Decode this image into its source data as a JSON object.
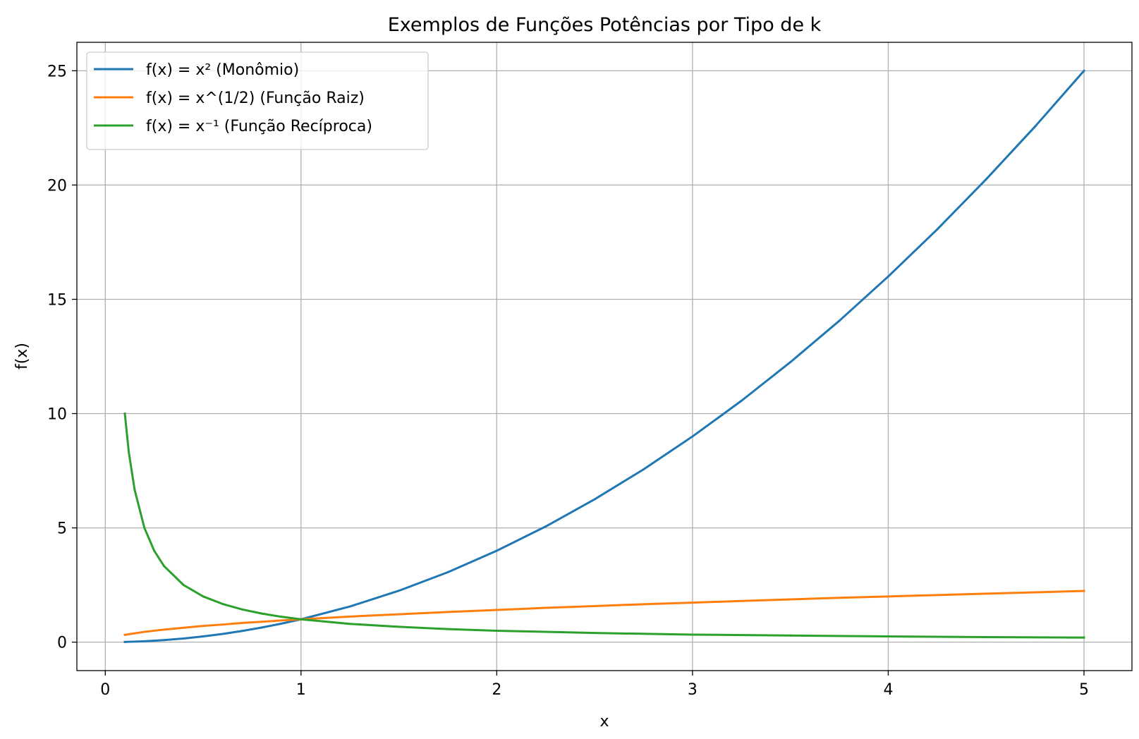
{
  "chart_data": {
    "type": "line",
    "title": "Exemplos de Funções Potências por Tipo de k",
    "xlabel": "x",
    "ylabel": "f(x)",
    "xlim": [
      -0.145,
      5.245
    ],
    "ylim": [
      -1.245,
      26.245
    ],
    "xticks": [
      0,
      1,
      2,
      3,
      4,
      5
    ],
    "xtick_labels": [
      "0",
      "1",
      "2",
      "3",
      "4",
      "5"
    ],
    "yticks": [
      0,
      5,
      10,
      15,
      20,
      25
    ],
    "ytick_labels": [
      "0",
      "5",
      "10",
      "15",
      "20",
      "25"
    ],
    "grid": true,
    "legend_position": "top-left",
    "series": [
      {
        "name": "f(x) = x² (Monômio)",
        "color": "#1f77b4",
        "x": [
          0.1,
          0.2,
          0.3,
          0.4,
          0.5,
          0.6,
          0.7,
          0.8,
          0.9,
          1.0,
          1.25,
          1.5,
          1.75,
          2.0,
          2.25,
          2.5,
          2.75,
          3.0,
          3.25,
          3.5,
          3.75,
          4.0,
          4.25,
          4.5,
          4.75,
          5.0
        ],
        "y": [
          0.01,
          0.04,
          0.09,
          0.16,
          0.25,
          0.36,
          0.49,
          0.64,
          0.81,
          1.0,
          1.56,
          2.25,
          3.06,
          4.0,
          5.06,
          6.25,
          7.56,
          9.0,
          10.56,
          12.25,
          14.06,
          16.0,
          18.06,
          20.25,
          22.56,
          25.0
        ]
      },
      {
        "name": "f(x) = x^(1/2) (Função Raiz)",
        "color": "#ff7f0e",
        "x": [
          0.1,
          0.2,
          0.3,
          0.4,
          0.5,
          0.6,
          0.7,
          0.8,
          0.9,
          1.0,
          1.25,
          1.5,
          1.75,
          2.0,
          2.25,
          2.5,
          2.75,
          3.0,
          3.25,
          3.5,
          3.75,
          4.0,
          4.25,
          4.5,
          4.75,
          5.0
        ],
        "y": [
          0.32,
          0.45,
          0.55,
          0.63,
          0.71,
          0.77,
          0.84,
          0.89,
          0.95,
          1.0,
          1.12,
          1.22,
          1.32,
          1.41,
          1.5,
          1.58,
          1.66,
          1.73,
          1.8,
          1.87,
          1.94,
          2.0,
          2.06,
          2.12,
          2.18,
          2.24
        ]
      },
      {
        "name": "f(x) = x⁻¹ (Função Recíproca)",
        "color": "#2ca02c",
        "x": [
          0.1,
          0.12,
          0.15,
          0.2,
          0.25,
          0.3,
          0.4,
          0.5,
          0.6,
          0.7,
          0.8,
          0.9,
          1.0,
          1.25,
          1.5,
          1.75,
          2.0,
          2.5,
          3.0,
          3.5,
          4.0,
          4.5,
          5.0
        ],
        "y": [
          10.0,
          8.33,
          6.67,
          5.0,
          4.0,
          3.33,
          2.5,
          2.0,
          1.67,
          1.43,
          1.25,
          1.11,
          1.0,
          0.8,
          0.67,
          0.57,
          0.5,
          0.4,
          0.33,
          0.29,
          0.25,
          0.22,
          0.2
        ]
      }
    ]
  }
}
